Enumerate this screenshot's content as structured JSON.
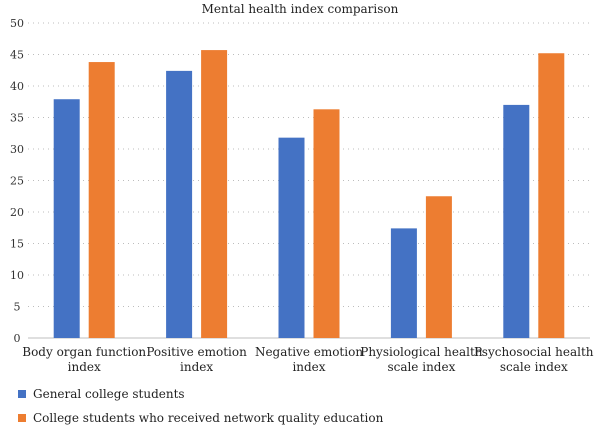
{
  "chart_data": {
    "type": "bar",
    "title": "Mental health index comparison",
    "categories": [
      [
        "Body organ function",
        "index"
      ],
      [
        "Positive emotion",
        "index"
      ],
      [
        "Negative emotion",
        "index"
      ],
      [
        "Physiological health",
        "scale index"
      ],
      [
        "Psychosocial health",
        "scale index"
      ]
    ],
    "series": [
      {
        "name": "General college students",
        "color": "#4472C4",
        "values": [
          37.9,
          42.4,
          31.8,
          17.4,
          37.0
        ]
      },
      {
        "name": "College students who received network quality education",
        "color": "#ED7D31",
        "values": [
          43.8,
          45.7,
          36.3,
          22.5,
          45.2
        ]
      }
    ],
    "ylim": [
      0,
      50
    ],
    "yticks": [
      0,
      5,
      10,
      15,
      20,
      25,
      30,
      35,
      40,
      45,
      50
    ],
    "grid": "horizontal-dotted",
    "legend_position": "bottom-left"
  }
}
